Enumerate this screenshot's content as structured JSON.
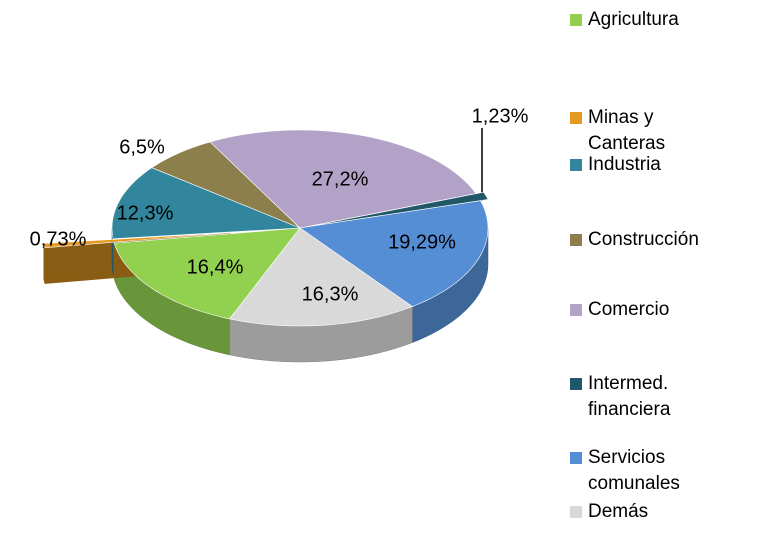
{
  "chart_data": {
    "type": "pie",
    "categories": [
      "Agricultura",
      "Minas y Canteras",
      "Industria",
      "Construcción",
      "Comercio",
      "Intermed. financiera",
      "Servicios comunales",
      "Demás"
    ],
    "values": [
      16.4,
      0.73,
      12.3,
      6.5,
      27.2,
      1.23,
      19.29,
      16.3
    ],
    "value_labels": [
      "16,4%",
      "0,73%",
      "12,3%",
      "6,5%",
      "27,2%",
      "1,23%",
      "19,29%",
      "16,3%"
    ],
    "colors": [
      "#92d050",
      "#e59b1f",
      "#31859c",
      "#8c7f4b",
      "#b3a2c7",
      "#215868",
      "#558ed5",
      "#d9d9d9"
    ]
  }
}
